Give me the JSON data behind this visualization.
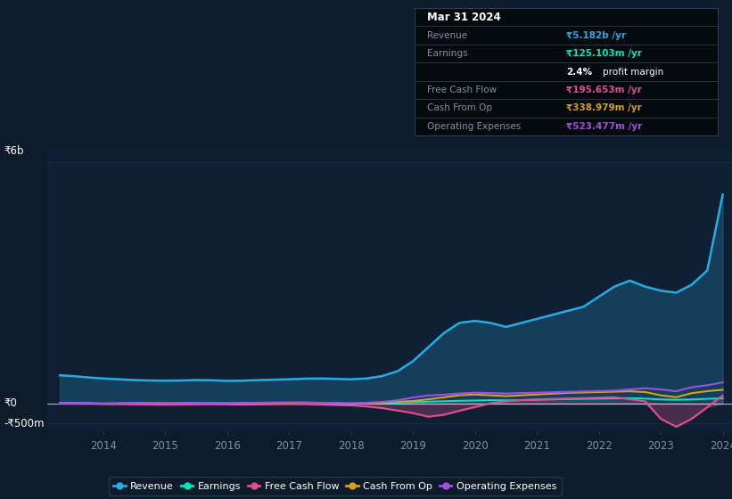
{
  "bg_color": "#0d1b2a",
  "chart_bg": "#0f1e30",
  "plot_bg": "#0f2035",
  "grid_color": "#1e3a5f",
  "text_color": "#ffffff",
  "muted_text": "#8090a0",
  "title_box_bg": "#050a0f",
  "years": [
    2013.3,
    2013.5,
    2013.8,
    2014.0,
    2014.25,
    2014.5,
    2014.75,
    2015.0,
    2015.25,
    2015.5,
    2015.75,
    2016.0,
    2016.25,
    2016.5,
    2016.75,
    2017.0,
    2017.25,
    2017.5,
    2017.75,
    2018.0,
    2018.25,
    2018.5,
    2018.75,
    2019.0,
    2019.25,
    2019.5,
    2019.75,
    2020.0,
    2020.25,
    2020.5,
    2020.75,
    2021.0,
    2021.25,
    2021.5,
    2021.75,
    2022.0,
    2022.25,
    2022.5,
    2022.75,
    2023.0,
    2023.25,
    2023.5,
    2023.75,
    2024.0
  ],
  "revenue": [
    700,
    680,
    640,
    620,
    600,
    580,
    570,
    565,
    570,
    580,
    575,
    560,
    565,
    580,
    590,
    600,
    615,
    620,
    610,
    600,
    620,
    680,
    800,
    1050,
    1400,
    1750,
    2000,
    2050,
    2000,
    1900,
    2000,
    2100,
    2200,
    2300,
    2400,
    2650,
    2900,
    3050,
    2900,
    2800,
    2750,
    2950,
    3300,
    5182
  ],
  "earnings": [
    15,
    8,
    3,
    -8,
    -4,
    2,
    5,
    10,
    8,
    5,
    3,
    2,
    5,
    8,
    10,
    12,
    10,
    5,
    0,
    -5,
    2,
    12,
    22,
    32,
    45,
    55,
    65,
    72,
    80,
    76,
    82,
    90,
    100,
    110,
    115,
    120,
    125,
    130,
    120,
    100,
    90,
    100,
    115,
    125
  ],
  "free_cash_flow": [
    -3,
    -5,
    -8,
    -12,
    -18,
    -22,
    -28,
    -32,
    -28,
    -22,
    -18,
    -22,
    -28,
    -22,
    -18,
    -14,
    -18,
    -28,
    -38,
    -48,
    -75,
    -115,
    -175,
    -240,
    -330,
    -280,
    -180,
    -90,
    5,
    55,
    82,
    102,
    112,
    122,
    132,
    142,
    152,
    105,
    55,
    -380,
    -580,
    -380,
    -95,
    196
  ],
  "cash_from_op": [
    8,
    4,
    0,
    -4,
    2,
    6,
    12,
    16,
    12,
    6,
    2,
    -4,
    2,
    6,
    12,
    16,
    22,
    12,
    2,
    -8,
    2,
    22,
    42,
    62,
    102,
    152,
    202,
    222,
    202,
    182,
    202,
    222,
    242,
    262,
    272,
    282,
    292,
    302,
    282,
    202,
    155,
    255,
    305,
    339
  ],
  "operating_expenses": [
    8,
    6,
    3,
    0,
    4,
    8,
    12,
    18,
    13,
    8,
    4,
    8,
    13,
    18,
    23,
    28,
    23,
    18,
    13,
    8,
    18,
    38,
    78,
    148,
    198,
    218,
    248,
    268,
    258,
    248,
    258,
    268,
    278,
    288,
    298,
    308,
    318,
    348,
    378,
    348,
    302,
    402,
    452,
    523
  ],
  "ylim_min": -700,
  "ylim_max": 6300,
  "xticks": [
    2014,
    2015,
    2016,
    2017,
    2018,
    2019,
    2020,
    2021,
    2022,
    2023,
    2024
  ],
  "revenue_color": "#29abe2",
  "earnings_color": "#00e5c0",
  "fcf_color": "#e05090",
  "cashop_color": "#d4a020",
  "opex_color": "#a050e0",
  "legend_bg": "#0d1b2a",
  "legend_border": "#2a3f55"
}
